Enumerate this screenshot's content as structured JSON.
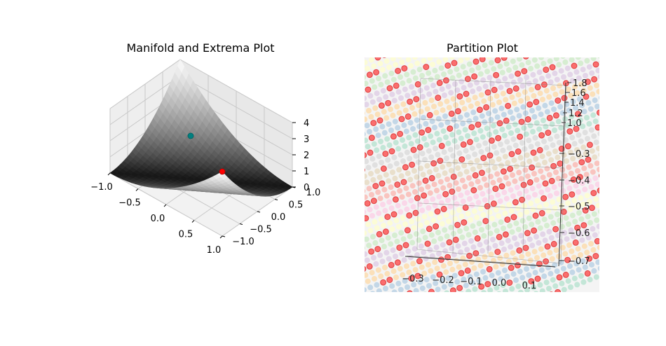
{
  "figure": {
    "background": "#ffffff"
  },
  "chart_data": [
    {
      "type": "surface3d",
      "title": "Manifold and Extrema Plot",
      "xlabel": "",
      "ylabel": "",
      "zlabel": "",
      "x_ticks": [
        "−1.0",
        "−0.5",
        "0.0",
        "0.5",
        "1.0"
      ],
      "y_ticks": [
        "−1.0",
        "−0.5",
        "0.0",
        "0.5",
        "1.0"
      ],
      "z_ticks": [
        "0",
        "1",
        "2",
        "3",
        "4"
      ],
      "xlim": [
        -1,
        1
      ],
      "ylim": [
        -1,
        1
      ],
      "zlim": [
        0,
        4
      ],
      "grid": true,
      "colormap": "gray",
      "extrema": [
        {
          "x": 1.0,
          "y": -1.0,
          "z": 4.0,
          "color": "#ff0000"
        },
        {
          "x": -0.5,
          "y": 0.5,
          "z": 1.0,
          "color": "#008080"
        }
      ]
    },
    {
      "type": "scatter3d",
      "title": "Partition Plot",
      "xlabel": "",
      "ylabel": "",
      "zlabel": "",
      "x_ticks": [
        "−0.3",
        "−0.2",
        "−0.1",
        "0.0",
        "0.1"
      ],
      "y_ticks": [
        "−0.3",
        "−0.4",
        "−0.5",
        "−0.6",
        "−0.7"
      ],
      "z_ticks": [
        "1.0",
        "1.2",
        "1.4",
        "1.6",
        "1.8"
      ],
      "grid": true,
      "colormap": "Pastel1",
      "band_colors": [
        "#fbb4ae",
        "#fccde5",
        "#ffffcc",
        "#ccebc5",
        "#decbe4",
        "#fed9a6",
        "#b3cde3",
        "#b3e2cd",
        "#d9d9d9",
        "#e5d8bd"
      ],
      "boundary_color": "#ff0000"
    }
  ]
}
